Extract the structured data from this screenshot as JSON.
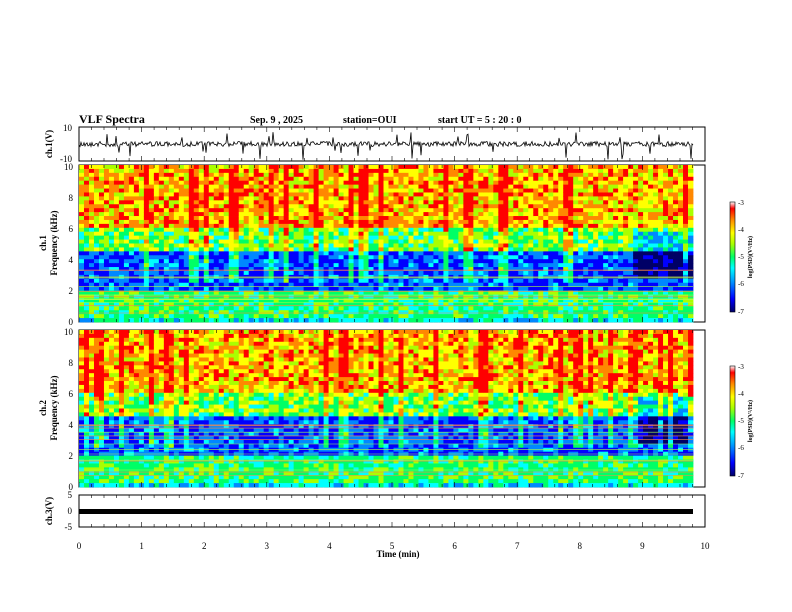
{
  "header": {
    "title": "VLF Spectra",
    "date": "Sep. 9 , 2025",
    "station": "station=OUI",
    "start": "start UT = 5 : 20 : 0"
  },
  "chart_data": [
    {
      "type": "line",
      "title": "",
      "ylabel": "ch.1(V)",
      "ylim": [
        -10,
        10
      ],
      "yticks": [
        "10",
        "-10"
      ],
      "xlim": [
        0,
        10
      ],
      "description_series": [
        {
          "values_summary": "noisy waveform near 0 V with sparse negative spikes"
        }
      ]
    },
    {
      "type": "heatmap",
      "ylabel_line1": "ch.1",
      "ylabel_line2": "Frequency (kHz)",
      "ylim": [
        0,
        10
      ],
      "yticks": [
        "0",
        "2",
        "4",
        "6",
        "8",
        "10"
      ],
      "xlim": [
        0,
        9.8
      ],
      "colorbar": {
        "label": "log(PSD)(V²/Hz)",
        "range": [
          -7,
          -3
        ],
        "ticks": [
          "-3",
          "-4",
          "-5",
          "-6",
          "-7"
        ]
      }
    },
    {
      "type": "heatmap",
      "ylabel_line1": "ch.2",
      "ylabel_line2": "Frequency (kHz)",
      "ylim": [
        0,
        10
      ],
      "yticks": [
        "0",
        "2",
        "4",
        "6",
        "8",
        "10"
      ],
      "xlim": [
        0,
        9.8
      ],
      "colorbar": {
        "label": "log(PSD)(V²/Hz)",
        "range": [
          -7,
          -3
        ],
        "ticks": [
          "-3",
          "-4",
          "-5",
          "-6",
          "-7"
        ]
      }
    },
    {
      "type": "line",
      "ylabel": "ch.3(V)",
      "ylim": [
        -5,
        5
      ],
      "yticks": [
        "5",
        "0",
        "-5"
      ],
      "xlim": [
        0,
        10
      ],
      "series": [
        {
          "values": [
            -0.5,
            -0.5
          ]
        }
      ]
    }
  ],
  "xaxis": {
    "label": "Time (min)",
    "ticks": [
      "0",
      "1",
      "2",
      "3",
      "4",
      "5",
      "6",
      "7",
      "8",
      "9",
      "10"
    ]
  },
  "colors": {
    "palette": [
      "#000066",
      "#0000ff",
      "#0088ff",
      "#00ffff",
      "#00ff66",
      "#aaff00",
      "#ffff00",
      "#ff8800",
      "#ff0000"
    ]
  }
}
